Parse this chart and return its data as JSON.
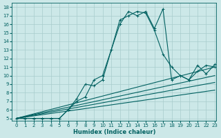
{
  "xlabel": "Humidex (Indice chaleur)",
  "xlim": [
    0,
    23
  ],
  "ylim": [
    5,
    18
  ],
  "xticks": [
    0,
    1,
    2,
    3,
    4,
    5,
    6,
    7,
    8,
    9,
    10,
    11,
    12,
    13,
    14,
    15,
    16,
    17,
    18,
    19,
    20,
    21,
    22,
    23
  ],
  "yticks": [
    5,
    6,
    7,
    8,
    9,
    10,
    11,
    12,
    13,
    14,
    15,
    16,
    17,
    18
  ],
  "bg_color": "#cce8e8",
  "grid_color": "#a8cccc",
  "line_color": "#006060",
  "curves": {
    "main": {
      "x": [
        0,
        1,
        2,
        3,
        4,
        5,
        6,
        7,
        8,
        9,
        10,
        11,
        12,
        13,
        14,
        15,
        16,
        17,
        18,
        19,
        20,
        21,
        22,
        23
      ],
      "y": [
        5,
        5,
        5,
        5,
        5,
        5,
        6,
        7,
        7.5,
        9.5,
        10,
        13,
        16.5,
        17,
        17.5,
        17.3,
        15.3,
        12.5,
        11,
        10,
        9.5,
        11.2,
        10.2,
        11.3
      ]
    },
    "zigzag": {
      "x": [
        0,
        1,
        2,
        3,
        4,
        5,
        6,
        7,
        8,
        9,
        10,
        11,
        12,
        13,
        14,
        15,
        16,
        17,
        18,
        19,
        20,
        21,
        22,
        23
      ],
      "y": [
        5,
        5,
        5,
        5,
        5,
        5,
        6,
        7.3,
        9,
        8.8,
        9.5,
        13,
        16,
        17.5,
        17,
        17.5,
        15.5,
        17.8,
        9.5,
        10,
        9.5,
        10.5,
        11.2,
        11
      ]
    },
    "line1": {
      "x": [
        0,
        23
      ],
      "y": [
        5,
        11.0
      ]
    },
    "line2": {
      "x": [
        0,
        23
      ],
      "y": [
        5,
        10.0
      ]
    },
    "line3": {
      "x": [
        0,
        23
      ],
      "y": [
        5,
        9.2
      ]
    },
    "line4": {
      "x": [
        0,
        23
      ],
      "y": [
        5,
        8.3
      ]
    }
  },
  "marker": "+",
  "markersize": 3,
  "linewidth": 0.8
}
